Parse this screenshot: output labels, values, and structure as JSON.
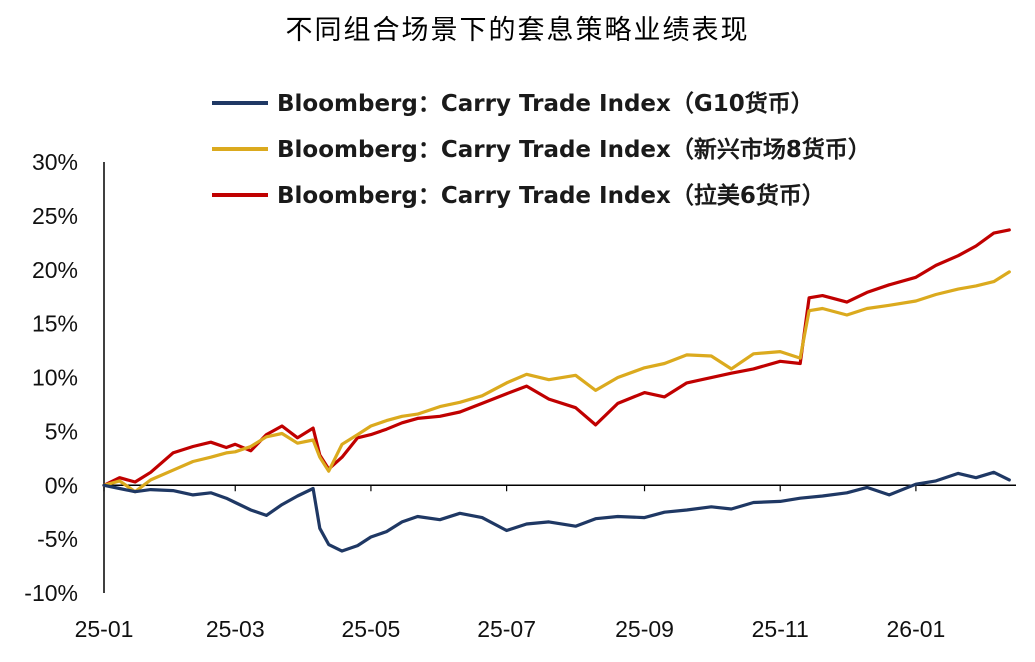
{
  "chart_data": {
    "type": "line",
    "title": "不同组合场景下的套息策略业绩表现",
    "xlabel": "",
    "ylabel": "",
    "x_ticks": [
      "25-01",
      "25-03",
      "25-05",
      "25-07",
      "25-09",
      "25-11",
      "26-01"
    ],
    "x_range": [
      "2025-01-01",
      "2026-02-15"
    ],
    "y_ticks": [
      "30%",
      "25%",
      "20%",
      "15%",
      "10%",
      "5%",
      "0%",
      "-5%",
      "-10%"
    ],
    "y_unit": "%",
    "ylim": [
      -10,
      30
    ],
    "grid": false,
    "legend_position": "top-center",
    "series": [
      {
        "name": "Bloomberg：Carry Trade Index（G10货币）",
        "color": "#1f3864",
        "points": [
          [
            "2025-01-01",
            0.0
          ],
          [
            "2025-01-08",
            -0.3
          ],
          [
            "2025-01-15",
            -0.6
          ],
          [
            "2025-01-22",
            -0.4
          ],
          [
            "2025-02-01",
            -0.5
          ],
          [
            "2025-02-10",
            -0.9
          ],
          [
            "2025-02-18",
            -0.7
          ],
          [
            "2025-02-25",
            -1.2
          ],
          [
            "2025-03-01",
            -1.6
          ],
          [
            "2025-03-08",
            -2.3
          ],
          [
            "2025-03-15",
            -2.8
          ],
          [
            "2025-03-22",
            -1.8
          ],
          [
            "2025-03-29",
            -1.0
          ],
          [
            "2025-04-05",
            -0.3
          ],
          [
            "2025-04-08",
            -4.0
          ],
          [
            "2025-04-12",
            -5.5
          ],
          [
            "2025-04-18",
            -6.1
          ],
          [
            "2025-04-25",
            -5.6
          ],
          [
            "2025-05-01",
            -4.8
          ],
          [
            "2025-05-08",
            -4.3
          ],
          [
            "2025-05-15",
            -3.4
          ],
          [
            "2025-05-22",
            -2.9
          ],
          [
            "2025-06-01",
            -3.2
          ],
          [
            "2025-06-10",
            -2.6
          ],
          [
            "2025-06-20",
            -3.0
          ],
          [
            "2025-07-01",
            -4.2
          ],
          [
            "2025-07-10",
            -3.6
          ],
          [
            "2025-07-20",
            -3.4
          ],
          [
            "2025-08-01",
            -3.8
          ],
          [
            "2025-08-10",
            -3.1
          ],
          [
            "2025-08-20",
            -2.9
          ],
          [
            "2025-09-01",
            -3.0
          ],
          [
            "2025-09-10",
            -2.5
          ],
          [
            "2025-09-20",
            -2.3
          ],
          [
            "2025-10-01",
            -2.0
          ],
          [
            "2025-10-10",
            -2.2
          ],
          [
            "2025-10-20",
            -1.6
          ],
          [
            "2025-11-01",
            -1.5
          ],
          [
            "2025-11-10",
            -1.2
          ],
          [
            "2025-11-20",
            -1.0
          ],
          [
            "2025-12-01",
            -0.7
          ],
          [
            "2025-12-10",
            -0.2
          ],
          [
            "2025-12-20",
            -0.9
          ],
          [
            "2026-01-01",
            0.1
          ],
          [
            "2026-01-10",
            0.4
          ],
          [
            "2026-01-20",
            1.1
          ],
          [
            "2026-01-28",
            0.7
          ],
          [
            "2026-02-05",
            1.2
          ],
          [
            "2026-02-12",
            0.5
          ]
        ]
      },
      {
        "name": "Bloomberg：Carry Trade Index（新兴市场8货币）",
        "color": "#dbaa1e",
        "points": [
          [
            "2025-01-01",
            0.0
          ],
          [
            "2025-01-08",
            0.4
          ],
          [
            "2025-01-15",
            -0.6
          ],
          [
            "2025-01-22",
            0.5
          ],
          [
            "2025-02-01",
            1.4
          ],
          [
            "2025-02-10",
            2.2
          ],
          [
            "2025-02-18",
            2.6
          ],
          [
            "2025-02-25",
            3.0
          ],
          [
            "2025-03-01",
            3.1
          ],
          [
            "2025-03-08",
            3.6
          ],
          [
            "2025-03-15",
            4.5
          ],
          [
            "2025-03-22",
            4.8
          ],
          [
            "2025-03-29",
            3.9
          ],
          [
            "2025-04-05",
            4.2
          ],
          [
            "2025-04-08",
            2.6
          ],
          [
            "2025-04-12",
            1.3
          ],
          [
            "2025-04-18",
            3.8
          ],
          [
            "2025-04-25",
            4.7
          ],
          [
            "2025-05-01",
            5.5
          ],
          [
            "2025-05-08",
            6.0
          ],
          [
            "2025-05-15",
            6.4
          ],
          [
            "2025-05-22",
            6.6
          ],
          [
            "2025-06-01",
            7.3
          ],
          [
            "2025-06-10",
            7.7
          ],
          [
            "2025-06-20",
            8.3
          ],
          [
            "2025-07-01",
            9.5
          ],
          [
            "2025-07-10",
            10.3
          ],
          [
            "2025-07-20",
            9.8
          ],
          [
            "2025-08-01",
            10.2
          ],
          [
            "2025-08-10",
            8.8
          ],
          [
            "2025-08-20",
            10.0
          ],
          [
            "2025-09-01",
            10.9
          ],
          [
            "2025-09-10",
            11.3
          ],
          [
            "2025-09-20",
            12.1
          ],
          [
            "2025-10-01",
            12.0
          ],
          [
            "2025-10-10",
            10.8
          ],
          [
            "2025-10-20",
            12.2
          ],
          [
            "2025-11-01",
            12.4
          ],
          [
            "2025-11-10",
            11.8
          ],
          [
            "2025-11-14",
            16.2
          ],
          [
            "2025-11-20",
            16.4
          ],
          [
            "2025-12-01",
            15.8
          ],
          [
            "2025-12-10",
            16.4
          ],
          [
            "2025-12-20",
            16.7
          ],
          [
            "2026-01-01",
            17.1
          ],
          [
            "2026-01-10",
            17.7
          ],
          [
            "2026-01-20",
            18.2
          ],
          [
            "2026-01-28",
            18.5
          ],
          [
            "2026-02-05",
            18.9
          ],
          [
            "2026-02-12",
            19.8
          ]
        ]
      },
      {
        "name": "Bloomberg：Carry Trade Index（拉美6货币）",
        "color": "#c00000",
        "points": [
          [
            "2025-01-01",
            0.0
          ],
          [
            "2025-01-08",
            0.7
          ],
          [
            "2025-01-15",
            0.3
          ],
          [
            "2025-01-22",
            1.2
          ],
          [
            "2025-02-01",
            3.0
          ],
          [
            "2025-02-10",
            3.6
          ],
          [
            "2025-02-18",
            4.0
          ],
          [
            "2025-02-25",
            3.5
          ],
          [
            "2025-03-01",
            3.8
          ],
          [
            "2025-03-08",
            3.2
          ],
          [
            "2025-03-15",
            4.7
          ],
          [
            "2025-03-22",
            5.5
          ],
          [
            "2025-03-29",
            4.4
          ],
          [
            "2025-04-05",
            5.3
          ],
          [
            "2025-04-08",
            2.8
          ],
          [
            "2025-04-12",
            1.5
          ],
          [
            "2025-04-18",
            2.6
          ],
          [
            "2025-04-25",
            4.4
          ],
          [
            "2025-05-01",
            4.7
          ],
          [
            "2025-05-08",
            5.2
          ],
          [
            "2025-05-15",
            5.8
          ],
          [
            "2025-05-22",
            6.2
          ],
          [
            "2025-06-01",
            6.4
          ],
          [
            "2025-06-10",
            6.8
          ],
          [
            "2025-06-20",
            7.6
          ],
          [
            "2025-07-01",
            8.5
          ],
          [
            "2025-07-10",
            9.2
          ],
          [
            "2025-07-20",
            8.0
          ],
          [
            "2025-08-01",
            7.2
          ],
          [
            "2025-08-10",
            5.6
          ],
          [
            "2025-08-20",
            7.6
          ],
          [
            "2025-09-01",
            8.6
          ],
          [
            "2025-09-10",
            8.2
          ],
          [
            "2025-09-20",
            9.5
          ],
          [
            "2025-10-01",
            10.0
          ],
          [
            "2025-10-10",
            10.4
          ],
          [
            "2025-10-20",
            10.8
          ],
          [
            "2025-11-01",
            11.5
          ],
          [
            "2025-11-10",
            11.3
          ],
          [
            "2025-11-14",
            17.4
          ],
          [
            "2025-11-20",
            17.6
          ],
          [
            "2025-12-01",
            17.0
          ],
          [
            "2025-12-10",
            17.9
          ],
          [
            "2025-12-20",
            18.6
          ],
          [
            "2026-01-01",
            19.3
          ],
          [
            "2026-01-10",
            20.4
          ],
          [
            "2026-01-20",
            21.3
          ],
          [
            "2026-01-28",
            22.2
          ],
          [
            "2026-02-05",
            23.4
          ],
          [
            "2026-02-12",
            23.7
          ]
        ]
      }
    ]
  }
}
